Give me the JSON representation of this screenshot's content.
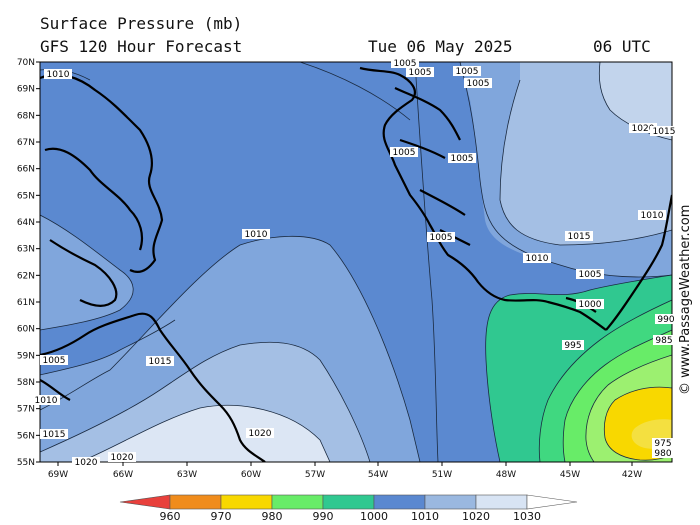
{
  "header": {
    "title": "Surface Pressure (mb)",
    "subtitle": "GFS 120 Hour Forecast",
    "date": "Tue 06 May 2025",
    "time": "06 UTC"
  },
  "credit": "© www.PassageWeather.com",
  "map": {
    "lat_ticks": [
      "70N",
      "69N",
      "68N",
      "67N",
      "66N",
      "65N",
      "64N",
      "63N",
      "62N",
      "61N",
      "60N",
      "59N",
      "58N",
      "57N",
      "56N",
      "55N"
    ],
    "lon_ticks": [
      "69W",
      "66W",
      "63W",
      "60W",
      "57W",
      "54W",
      "51W",
      "48W",
      "45W",
      "42W"
    ],
    "isobar_labels": [
      {
        "text": "1010",
        "id": "nw-1010"
      },
      {
        "text": "1005",
        "id": "top-1005-a"
      },
      {
        "text": "1005",
        "id": "top-1005-b"
      },
      {
        "text": "1005",
        "id": "top-1005-c"
      },
      {
        "text": "1005",
        "id": "top-1005-d"
      },
      {
        "text": "1020",
        "id": "ne-1020"
      },
      {
        "text": "1015",
        "id": "ne-1015-edge"
      },
      {
        "text": "1005",
        "id": "mid-1005-a"
      },
      {
        "text": "1005",
        "id": "mid-1005-b"
      },
      {
        "text": "1010",
        "id": "east-1010"
      },
      {
        "text": "1010",
        "id": "center-1010"
      },
      {
        "text": "1005",
        "id": "coast-1005"
      },
      {
        "text": "1015",
        "id": "se-1015"
      },
      {
        "text": "1010",
        "id": "se-1010"
      },
      {
        "text": "1005",
        "id": "se-1005"
      },
      {
        "text": "1000",
        "id": "se-1000"
      },
      {
        "text": "995",
        "id": "se-995"
      },
      {
        "text": "990",
        "id": "edge-990"
      },
      {
        "text": "985",
        "id": "edge-985"
      },
      {
        "text": "975",
        "id": "edge-975"
      },
      {
        "text": "980",
        "id": "edge-980"
      },
      {
        "text": "1015",
        "id": "lab-1015"
      },
      {
        "text": "1005",
        "id": "west-1005"
      },
      {
        "text": "1010",
        "id": "west-1010"
      },
      {
        "text": "1015",
        "id": "sw-1015"
      },
      {
        "text": "1020",
        "id": "sw-1020-a"
      },
      {
        "text": "1020",
        "id": "sw-1020-b"
      },
      {
        "text": "1020",
        "id": "south-1020"
      }
    ]
  },
  "legend": {
    "values": [
      "960",
      "970",
      "980",
      "990",
      "1000",
      "1010",
      "1020",
      "1030"
    ],
    "colors": [
      "#e8403c",
      "#f08c1c",
      "#f8d800",
      "#68ec68",
      "#30c890",
      "#5a88d0",
      "#9ab8e0",
      "#d8e4f4",
      "#ffffff"
    ]
  },
  "colors": {
    "band_1005_1010": "#5b89d0",
    "band_1010_1015": "#80a6dc",
    "band_1015_1020": "#a4bfe4",
    "band_1020_1025": "#dce6f4",
    "band_995_1000": "#30c890",
    "band_990_995": "#40d880",
    "band_985_990": "#68ec68",
    "band_980_985": "#9cf070",
    "band_975_980": "#f8d800",
    "coast": "#000000"
  }
}
